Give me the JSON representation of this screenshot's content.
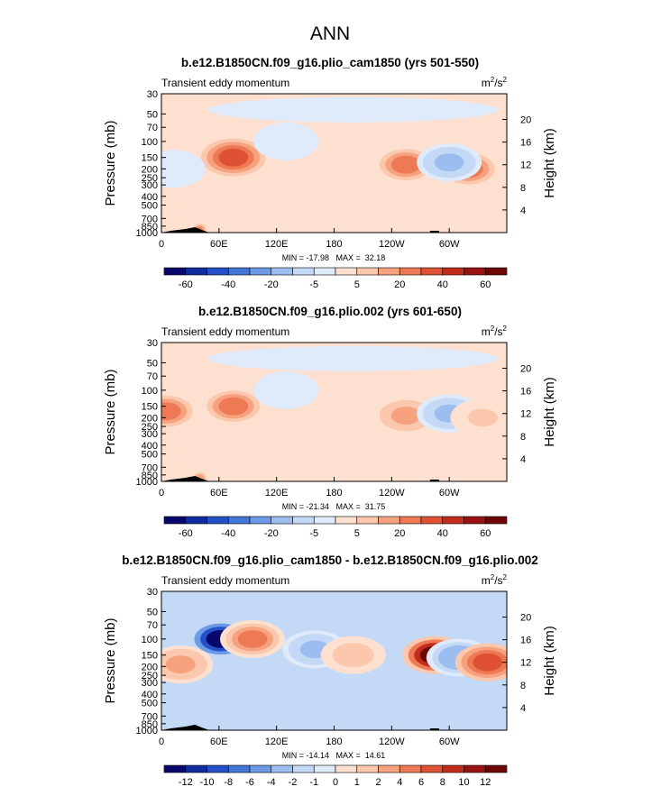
{
  "page_title": "ANN",
  "chart_data": [
    {
      "type": "heatmap",
      "title": "b.e12.B1850CN.f09_g16.plio_cam1850 (yrs 501-550)",
      "subtitle_left": "Transient eddy momentum",
      "units_base": "m",
      "units_mid": "/s",
      "units_exp": "2",
      "ylabel": "Pressure (mb)",
      "ylabel_right": "Height (km)",
      "x_ticks": [
        "0",
        "60E",
        "120E",
        "180",
        "120W",
        "60W"
      ],
      "y_ticks": [
        "30",
        "50",
        "70",
        "100",
        "150",
        "200",
        "250",
        "300",
        "400",
        "500",
        "700",
        "850",
        "1000"
      ],
      "y_ticks_right": [
        "20",
        "16",
        "12",
        "8",
        "4"
      ],
      "stats": "MIN = -17.98   MAX =  32.18",
      "colorbar_labels": [
        "-60",
        "-40",
        "-20",
        "-5",
        "5",
        "20",
        "40",
        "60"
      ],
      "features": [
        {
          "lon": 75,
          "p": 150,
          "value": 32
        },
        {
          "lon": 255,
          "p": 180,
          "value": 30
        },
        {
          "lon": 320,
          "p": 200,
          "value": 24
        },
        {
          "lon": 300,
          "p": 170,
          "value": -18
        },
        {
          "lon": 12,
          "p": 200,
          "value": -8
        },
        {
          "lon": 130,
          "p": 100,
          "value": -6
        },
        {
          "lon": 40,
          "p": 920,
          "value": 25
        }
      ]
    },
    {
      "type": "heatmap",
      "title": "b.e12.B1850CN.f09_g16.plio.002 (yrs 601-650)",
      "subtitle_left": "Transient eddy momentum",
      "units_base": "m",
      "units_mid": "/s",
      "units_exp": "2",
      "ylabel": "Pressure (mb)",
      "ylabel_right": "Height (km)",
      "x_ticks": [
        "0",
        "60E",
        "120E",
        "180",
        "120W",
        "60W"
      ],
      "y_ticks": [
        "30",
        "50",
        "70",
        "100",
        "150",
        "200",
        "250",
        "300",
        "400",
        "500",
        "700",
        "850",
        "1000"
      ],
      "y_ticks_right": [
        "20",
        "16",
        "12",
        "8",
        "4"
      ],
      "stats": "MIN = -21.34   MAX =  31.75",
      "colorbar_labels": [
        "-60",
        "-40",
        "-20",
        "-5",
        "5",
        "20",
        "40",
        "60"
      ],
      "features": [
        {
          "lon": 75,
          "p": 150,
          "value": 31
        },
        {
          "lon": 255,
          "p": 190,
          "value": 20
        },
        {
          "lon": 5,
          "p": 170,
          "value": 25
        },
        {
          "lon": 300,
          "p": 180,
          "value": -21
        },
        {
          "lon": 335,
          "p": 200,
          "value": 10
        },
        {
          "lon": 130,
          "p": 100,
          "value": -6
        },
        {
          "lon": 40,
          "p": 920,
          "value": 22
        }
      ]
    },
    {
      "type": "heatmap",
      "title": "b.e12.B1850CN.f09_g16.plio_cam1850 - b.e12.B1850CN.f09_g16.plio.002",
      "subtitle_left": "Transient eddy momentum",
      "units_base": "m",
      "units_mid": "/s",
      "units_exp": "2",
      "ylabel": "Pressure (mb)",
      "ylabel_right": "Height (km)",
      "x_ticks": [
        "0",
        "60E",
        "120E",
        "180",
        "120W",
        "60W"
      ],
      "y_ticks": [
        "30",
        "50",
        "70",
        "100",
        "150",
        "200",
        "250",
        "300",
        "400",
        "500",
        "700",
        "850",
        "1000"
      ],
      "y_ticks_right": [
        "20",
        "16",
        "12",
        "8",
        "4"
      ],
      "stats": "MIN = -14.14   MAX =  14.61",
      "colorbar_labels": [
        "-12",
        "-10",
        "-8",
        "-6",
        "-4",
        "-2",
        "-1",
        "0",
        "1",
        "2",
        "4",
        "6",
        "8",
        "10",
        "12"
      ],
      "features": [
        {
          "lon": 62,
          "p": 100,
          "value": -14
        },
        {
          "lon": 95,
          "p": 100,
          "value": 6
        },
        {
          "lon": 20,
          "p": 190,
          "value": 4
        },
        {
          "lon": 285,
          "p": 150,
          "value": 14.6
        },
        {
          "lon": 310,
          "p": 160,
          "value": -5
        },
        {
          "lon": 340,
          "p": 180,
          "value": 8
        },
        {
          "lon": 160,
          "p": 130,
          "value": -4
        },
        {
          "lon": 200,
          "p": 150,
          "value": 3
        }
      ]
    }
  ],
  "colors": {
    "frame": "#000000",
    "zero_fill": "#fde0cf",
    "palette": [
      "#08086b",
      "#0f2b9c",
      "#2450c8",
      "#4178d8",
      "#6c9ae6",
      "#9cbdf0",
      "#c4d9f6",
      "#dfeafb",
      "#fde0cf",
      "#fbc7ad",
      "#f7a27f",
      "#ee7a55",
      "#de5134",
      "#c12d1c",
      "#981212",
      "#6e0606"
    ]
  }
}
